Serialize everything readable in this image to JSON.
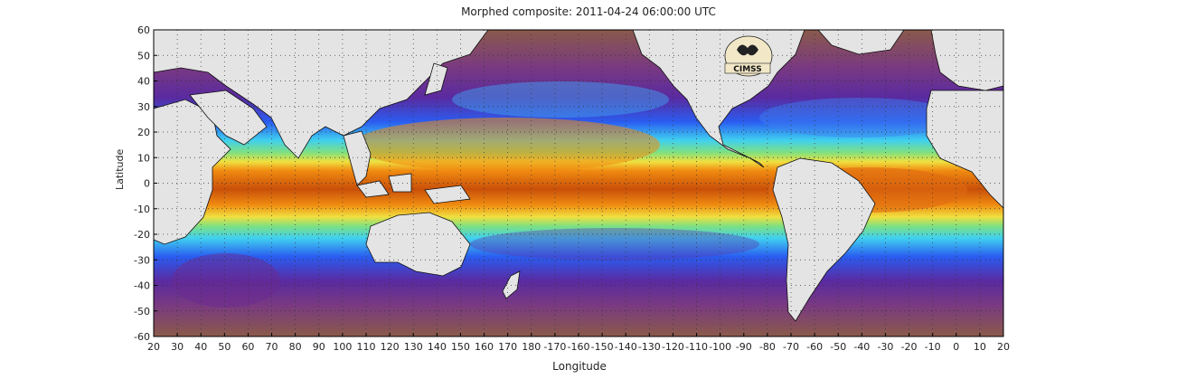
{
  "title": "Morphed composite: 2011-04-24 06:00:00 UTC",
  "x_axis": {
    "label": "Longitude",
    "ticks": [
      "20",
      "30",
      "40",
      "50",
      "60",
      "70",
      "80",
      "90",
      "100",
      "110",
      "120",
      "130",
      "140",
      "150",
      "160",
      "170",
      "180",
      "-170",
      "-160",
      "-150",
      "-140",
      "-130",
      "-120",
      "-110",
      "-100",
      "-90",
      "-80",
      "-70",
      "-60",
      "-50",
      "-40",
      "-30",
      "-20",
      "-10",
      "0",
      "10",
      "20"
    ]
  },
  "y_axis": {
    "label": "Latitude",
    "ticks": [
      "60",
      "50",
      "40",
      "30",
      "20",
      "10",
      "0",
      "-10",
      "-20",
      "-30",
      "-40",
      "-50",
      "-60"
    ]
  },
  "logo": {
    "text": "CIMSS"
  },
  "colors": {
    "land": "#e4e4e4",
    "dry": "#8a5a4a",
    "purple": "#6a2a90",
    "blue": "#2a5cf0",
    "cyan": "#3fd0f0",
    "green": "#7fe080",
    "yellow": "#f0e040",
    "orange": "#f08a10",
    "deep": "#c8500a"
  }
}
